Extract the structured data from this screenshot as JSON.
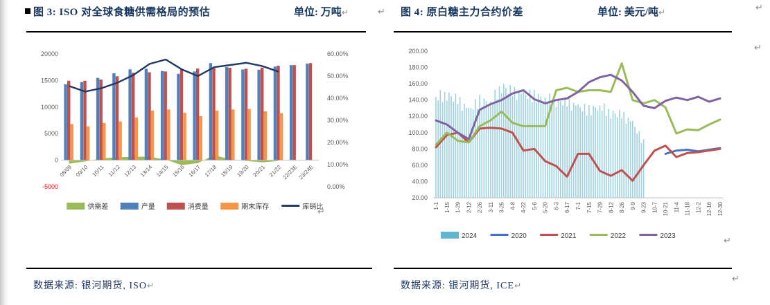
{
  "marks": {
    "return": "↵"
  },
  "figure3": {
    "bullet": "■",
    "title": "图 3: ISO 对全球食糖供需格局的预估",
    "unit": "单位: 万吨",
    "source": "数据来源: 银河期货, ISO",
    "chart_data": {
      "type": "bar",
      "categories": [
        "08/09",
        "09/10",
        "10/11",
        "11/12",
        "12/13",
        "13/14",
        "14/15",
        "15/16",
        "16/17",
        "17/18",
        "18/19",
        "19/20",
        "20/21",
        "21/22",
        "22/23E",
        "23/24E"
      ],
      "series": [
        {
          "name": "供需差",
          "render": "area",
          "axis": "left",
          "color": "#9BBB59",
          "values": [
            -650,
            -250,
            330,
            550,
            650,
            650,
            100,
            -950,
            -550,
            950,
            140,
            -150,
            -400,
            -150,
            null,
            null
          ]
        },
        {
          "name": "产量",
          "render": "bar",
          "axis": "left",
          "color": "#4F81BD",
          "values": [
            14300,
            14700,
            15500,
            16350,
            17100,
            17200,
            16800,
            16250,
            16700,
            18280,
            17540,
            17070,
            17030,
            17630,
            17890,
            18190
          ]
        },
        {
          "name": "消费量",
          "render": "bar",
          "axis": "left",
          "color": "#C0504D",
          "values": [
            14950,
            14950,
            15170,
            15800,
            16450,
            16550,
            16700,
            17200,
            17250,
            17330,
            17400,
            17220,
            17430,
            17780,
            17890,
            18280
          ]
        },
        {
          "name": "期末库存",
          "render": "bar",
          "axis": "left",
          "color": "#F79646",
          "values": [
            6800,
            6350,
            7000,
            7300,
            8050,
            9350,
            9550,
            8900,
            8300,
            9350,
            9550,
            9650,
            9200,
            8850,
            null,
            null
          ]
        },
        {
          "name": "库销比",
          "render": "line",
          "axis": "right",
          "color": "#1F3864",
          "values": [
            45.5,
            43,
            44.5,
            47,
            50.5,
            55.5,
            57.5,
            53,
            50,
            54,
            55,
            56,
            54.5,
            52,
            null,
            null
          ]
        }
      ],
      "axis_left": {
        "min": -5000,
        "max": 20000,
        "tick_labels": [
          "20000",
          "15000",
          "10000",
          "5000",
          "0",
          "-5000"
        ],
        "negative_color": "#FF0000"
      },
      "axis_right": {
        "min": 0,
        "max": 60,
        "tick_labels": [
          "60.00%",
          "50.00%",
          "40.00%",
          "30.00%",
          "20.00%",
          "10.00%",
          "0.00%"
        ]
      },
      "legend_position": "bottom",
      "grid": false
    }
  },
  "figure4": {
    "title": "图 4: 原白糖主力合约价差",
    "unit": "单位: 美元/吨",
    "source": "数据来源: 银河期货, ICE",
    "chart_data": {
      "type": "line",
      "x_labels": [
        "1-1",
        "1-15",
        "1-29",
        "2-12",
        "2-26",
        "3-11",
        "3-25",
        "4-8",
        "4-22",
        "5-6",
        "5-20",
        "6-3",
        "6-17",
        "7-1",
        "7-15",
        "7-29",
        "8-12",
        "8-26",
        "9-9",
        "9-23",
        "10-7",
        "10-21",
        "11-4",
        "11-18",
        "12-2",
        "12-16",
        "12-30"
      ],
      "series": [
        {
          "name": "2024",
          "render": "bar",
          "color": "#5FB6D0",
          "values": [
            144,
            148,
            140,
            128,
            140,
            138,
            158,
            150,
            147,
            146,
            143,
            140,
            137,
            132,
            128,
            133,
            125,
            122,
            112,
            88,
            null,
            null,
            null,
            null,
            null,
            null,
            null
          ]
        },
        {
          "name": "2020",
          "render": "line",
          "color": "#4472C4",
          "values": [
            null,
            null,
            null,
            null,
            null,
            null,
            null,
            null,
            null,
            null,
            null,
            null,
            null,
            null,
            null,
            null,
            null,
            null,
            null,
            null,
            null,
            74,
            78,
            79,
            77,
            79,
            81
          ]
        },
        {
          "name": "2021",
          "render": "line",
          "color": "#C0504D",
          "values": [
            82,
            97,
            100,
            88,
            105,
            106,
            105,
            100,
            78,
            80,
            65,
            59,
            46,
            74,
            74,
            53,
            47,
            54,
            41,
            60,
            78,
            84,
            70,
            75,
            76,
            78,
            80
          ]
        },
        {
          "name": "2022",
          "render": "line",
          "color": "#9BBB59",
          "values": [
            85,
            100,
            90,
            88,
            108,
            115,
            126,
            112,
            108,
            108,
            108,
            152,
            155,
            150,
            152,
            152,
            150,
            185,
            140,
            136,
            140,
            131,
            99,
            104,
            103,
            110,
            116
          ]
        },
        {
          "name": "2023",
          "render": "line",
          "color": "#8064A2",
          "values": [
            115,
            110,
            100,
            92,
            128,
            135,
            140,
            148,
            152,
            141,
            136,
            140,
            142,
            150,
            162,
            168,
            171,
            164,
            150,
            133,
            130,
            139,
            143,
            140,
            144,
            138,
            142
          ]
        }
      ],
      "y_axis": {
        "min": 20,
        "max": 200,
        "tick_labels": [
          "200.00",
          "180.00",
          "160.00",
          "140.00",
          "120.00",
          "100.00",
          "80.00",
          "60.00",
          "40.00",
          "20.00"
        ]
      },
      "legend_position": "bottom",
      "grid": false
    }
  }
}
